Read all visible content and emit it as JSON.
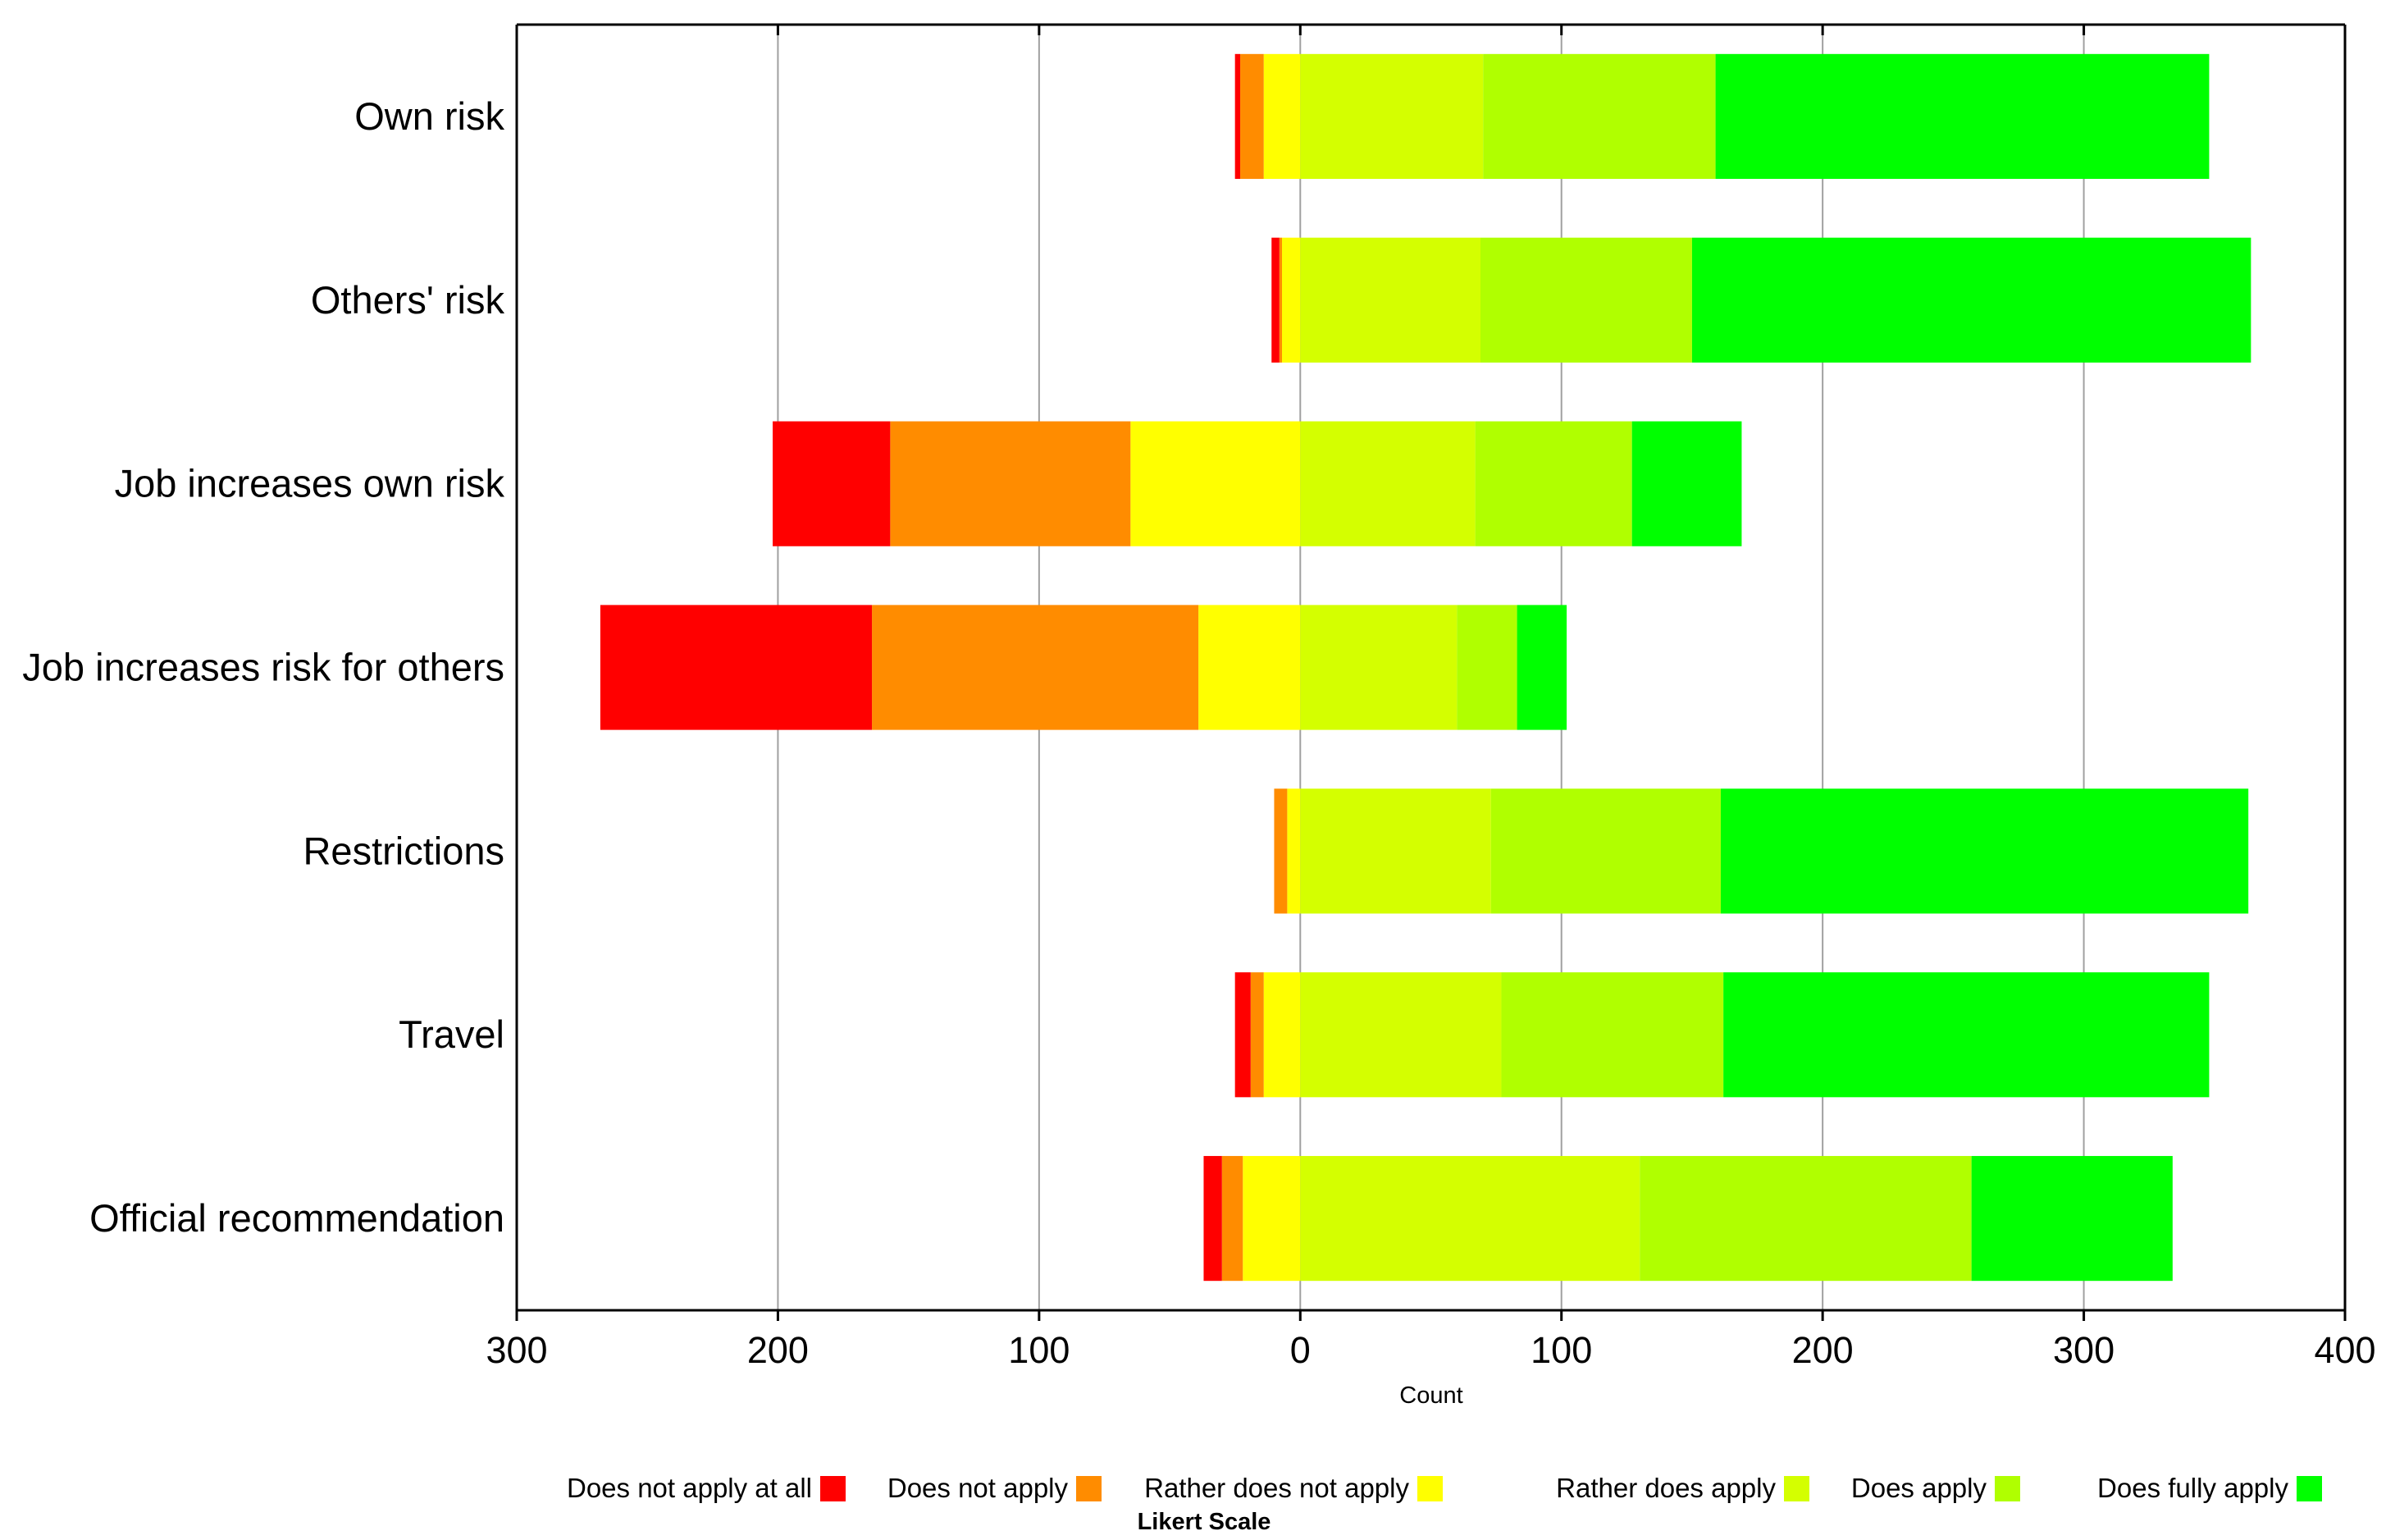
{
  "chart_data": {
    "type": "bar",
    "orientation": "horizontal",
    "stacked": "diverging",
    "categories": [
      "Own risk",
      "Others' risk",
      "Job increases own risk",
      "Job increases risk for others",
      "Restrictions",
      "Travel",
      "Official recommendation"
    ],
    "series": [
      {
        "name": "Does not apply at all",
        "color": "#ff0000",
        "values": [
          2,
          3,
          45,
          104,
          0,
          6,
          7
        ]
      },
      {
        "name": "Does not apply",
        "color": "#ff8c00",
        "values": [
          9,
          1,
          92,
          125,
          5,
          5,
          8
        ]
      },
      {
        "name": "Rather does not apply",
        "color": "#ffff00",
        "values": [
          14,
          7,
          65,
          39,
          5,
          14,
          22
        ]
      },
      {
        "name": "Rather does apply",
        "color": "#d4ff00",
        "values": [
          70,
          69,
          67,
          60,
          73,
          77,
          130
        ]
      },
      {
        "name": "Does apply",
        "color": "#b0ff00",
        "values": [
          89,
          81,
          60,
          23,
          88,
          85,
          127
        ]
      },
      {
        "name": "Does fully apply",
        "color": "#00ff00",
        "values": [
          189,
          214,
          42,
          19,
          202,
          186,
          77
        ]
      }
    ],
    "negative_series_count": 3,
    "xlim": [
      -300,
      400
    ],
    "xticks": [
      -300,
      -200,
      -100,
      0,
      100,
      200,
      300,
      400
    ],
    "xtick_labels": [
      "300",
      "200",
      "100",
      "0",
      "100",
      "200",
      "300",
      "400"
    ],
    "xlabel": "Count",
    "ylabel": "",
    "legend_title": "Likert Scale",
    "legend_position": "bottom",
    "grid": "vertical"
  }
}
